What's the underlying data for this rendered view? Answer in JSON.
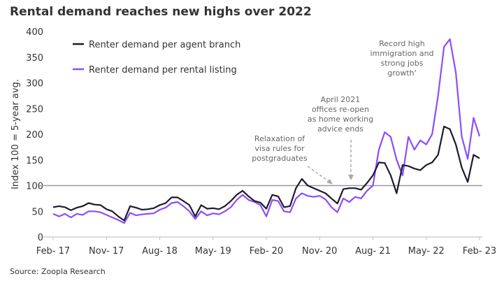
{
  "chart_data": {
    "type": "line",
    "title": "Rental demand reaches new highs over 2022",
    "y_label": "Index 100 = 5-year avg.",
    "source": "Source: Zoopla Research",
    "categories": [
      "Feb- 17",
      null,
      null,
      null,
      null,
      null,
      null,
      null,
      null,
      "Nov- 17",
      null,
      null,
      null,
      null,
      null,
      null,
      null,
      null,
      "Aug- 18",
      null,
      null,
      null,
      null,
      null,
      null,
      null,
      null,
      "May- 19",
      null,
      null,
      null,
      null,
      null,
      null,
      null,
      null,
      "Feb- 20",
      null,
      null,
      null,
      null,
      null,
      null,
      null,
      null,
      "Nov- 20",
      null,
      null,
      null,
      null,
      null,
      null,
      null,
      null,
      "Aug- 21",
      null,
      null,
      null,
      null,
      null,
      null,
      null,
      null,
      "May- 22",
      null,
      null,
      null,
      null,
      null,
      null,
      null,
      null,
      "Feb- 23"
    ],
    "series": [
      {
        "name": "Renter demand per agent branch",
        "color": "#1c1b2e",
        "values": [
          58,
          60,
          58,
          52,
          57,
          60,
          66,
          63,
          62,
          54,
          50,
          40,
          32,
          60,
          57,
          53,
          54,
          56,
          62,
          66,
          77,
          77,
          70,
          62,
          40,
          62,
          55,
          56,
          54,
          60,
          70,
          82,
          90,
          79,
          70,
          67,
          55,
          82,
          79,
          58,
          60,
          95,
          113,
          100,
          95,
          90,
          85,
          75,
          65,
          93,
          95,
          95,
          92,
          105,
          120,
          145,
          144,
          120,
          85,
          140,
          138,
          133,
          130,
          140,
          145,
          160,
          215,
          210,
          180,
          135,
          107,
          160,
          153
        ]
      },
      {
        "name": "Renter demand per rental listing",
        "color": "#8b4dff",
        "values": [
          45,
          40,
          45,
          38,
          45,
          43,
          50,
          50,
          48,
          43,
          38,
          33,
          27,
          47,
          42,
          44,
          45,
          46,
          53,
          57,
          66,
          68,
          60,
          50,
          35,
          50,
          42,
          46,
          44,
          50,
          58,
          72,
          82,
          72,
          68,
          62,
          40,
          72,
          70,
          50,
          48,
          75,
          85,
          80,
          78,
          80,
          73,
          58,
          48,
          75,
          68,
          78,
          75,
          90,
          100,
          170,
          204,
          195,
          150,
          120,
          195,
          170,
          188,
          180,
          200,
          275,
          370,
          385,
          320,
          195,
          152,
          232,
          196
        ]
      }
    ],
    "reference_line": 100,
    "ylim": [
      0,
      400
    ],
    "yticks": [
      0,
      50,
      100,
      150,
      200,
      250,
      300,
      350,
      400
    ],
    "legend": "top-left",
    "annotations": [
      {
        "lines": [
          "Relaxation of",
          "visa rules for",
          "postgraduates"
        ]
      },
      {
        "lines": [
          "April 2021",
          "offices re-open",
          "as home working",
          "advice ends"
        ]
      },
      {
        "lines": [
          "Record high",
          "immigration and",
          "strong jobs",
          "growth'"
        ]
      }
    ]
  }
}
